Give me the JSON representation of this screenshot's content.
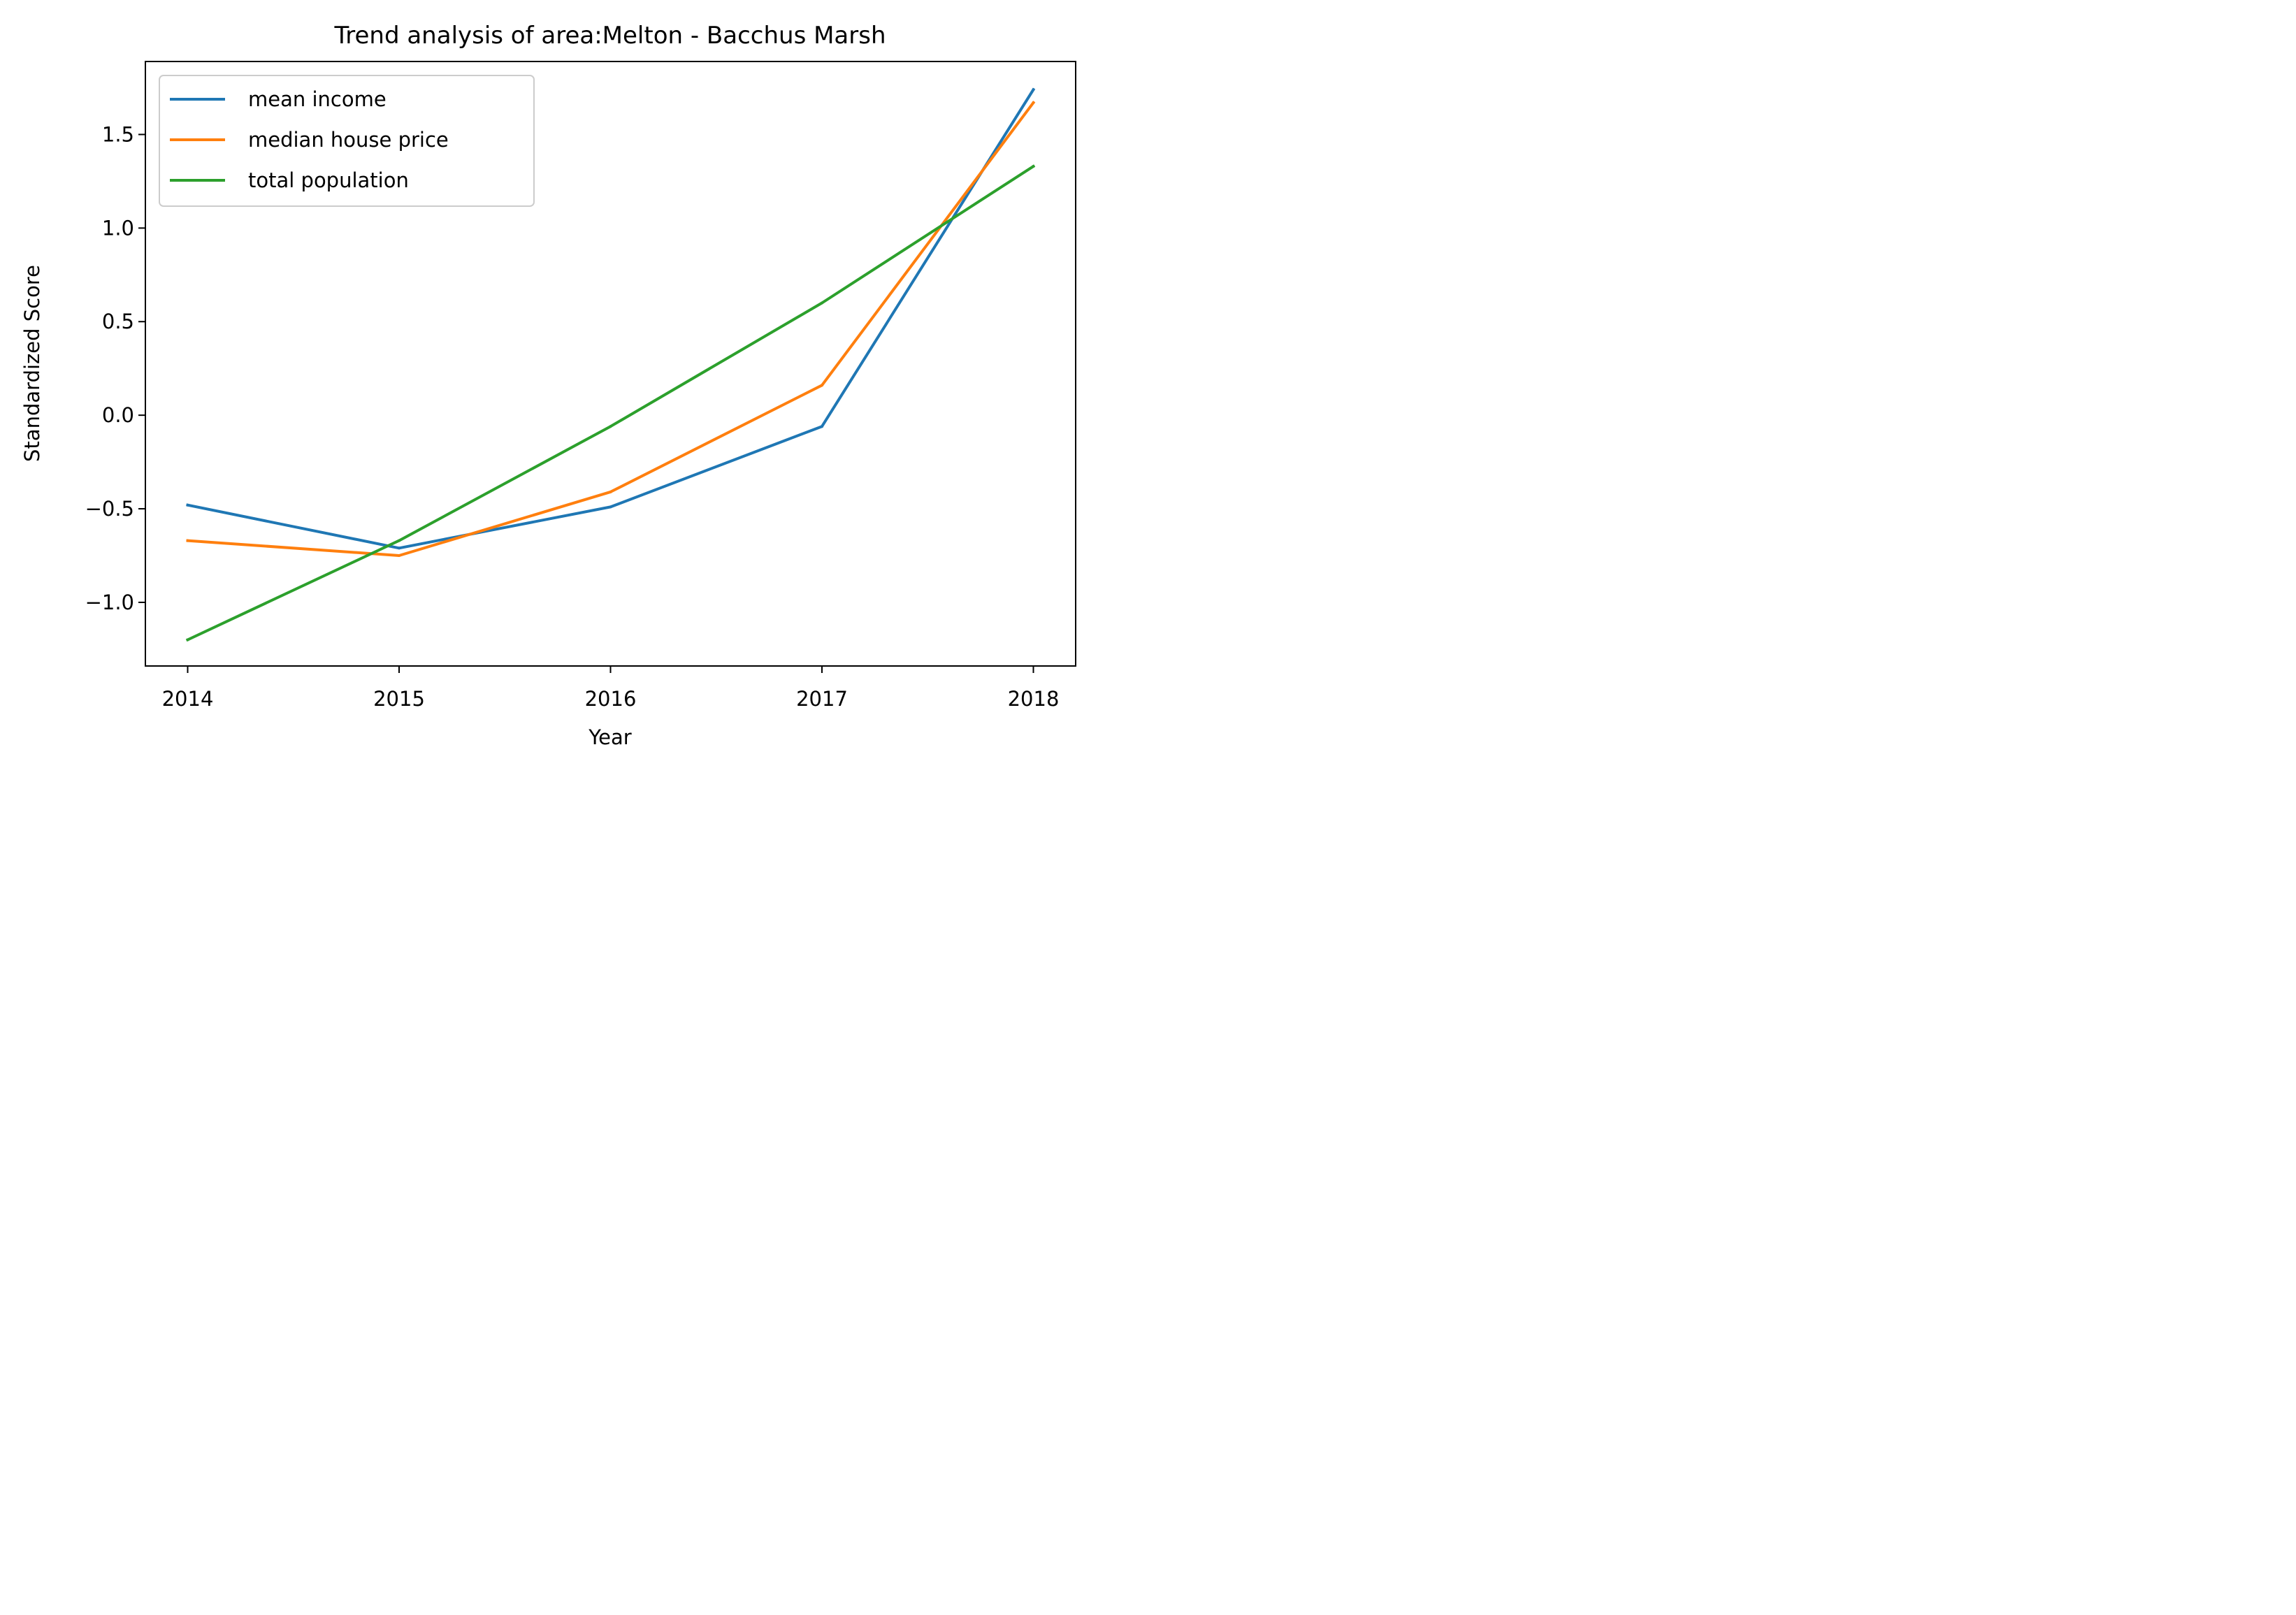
{
  "chart_data": {
    "type": "line",
    "title": "Trend analysis of area:Melton - Bacchus Marsh",
    "xlabel": "Year",
    "ylabel": "Standardized Score",
    "x": [
      2014,
      2015,
      2016,
      2017,
      2018
    ],
    "x_tick_labels": [
      "2014",
      "2015",
      "2016",
      "2017",
      "2018"
    ],
    "y_ticks": [
      -1.0,
      -0.5,
      0.0,
      0.5,
      1.0,
      1.5
    ],
    "y_tick_labels": [
      "−1.0",
      "−0.5",
      "0.0",
      "0.5",
      "1.0",
      "1.5"
    ],
    "xlim": [
      2013.8,
      2018.2
    ],
    "ylim": [
      -1.34,
      1.89
    ],
    "grid": false,
    "legend_position": "upper-left",
    "series": [
      {
        "name": "mean income",
        "color": "#1f77b4",
        "values": [
          -0.48,
          -0.71,
          -0.49,
          -0.06,
          1.74
        ]
      },
      {
        "name": "median house price",
        "color": "#ff7f0e",
        "values": [
          -0.67,
          -0.75,
          -0.41,
          0.16,
          1.67
        ]
      },
      {
        "name": "total population",
        "color": "#2ca02c",
        "values": [
          -1.2,
          -0.67,
          -0.06,
          0.6,
          1.33
        ]
      }
    ]
  }
}
